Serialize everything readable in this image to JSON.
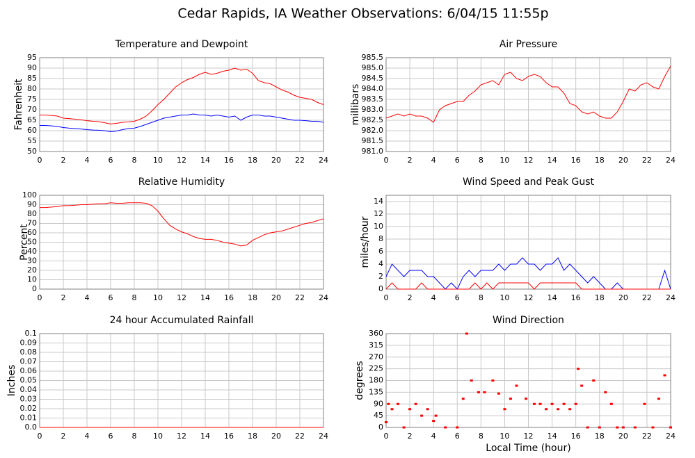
{
  "title": "Cedar Rapids, IA Weather Observations: 6/04/15 11:55p",
  "chart_data": [
    {
      "type": "line",
      "title": "Temperature and Dewpoint",
      "y_label": "Fahrenheit",
      "x": [
        0,
        0.5,
        1,
        1.5,
        2,
        2.5,
        3,
        3.5,
        4,
        4.5,
        5,
        5.5,
        6,
        6.5,
        7,
        7.5,
        8,
        8.5,
        9,
        9.5,
        10,
        10.5,
        11,
        11.5,
        12,
        12.5,
        13,
        13.5,
        14,
        14.5,
        15,
        15.5,
        16,
        16.5,
        17,
        17.5,
        18,
        18.5,
        19,
        19.5,
        20,
        20.5,
        21,
        21.5,
        22,
        22.5,
        23,
        23.5,
        24
      ],
      "series": [
        {
          "color": "#ff0000",
          "values": [
            67.5,
            67.5,
            67.3,
            67,
            66,
            65.8,
            65.5,
            65.2,
            64.8,
            64.5,
            64.3,
            63.8,
            63.2,
            63.5,
            64,
            64.2,
            64.5,
            65.5,
            67,
            69.5,
            72.5,
            75,
            78,
            81,
            83,
            84.5,
            85.5,
            87,
            88,
            87,
            87.5,
            88.5,
            89,
            90,
            89,
            89.5,
            87.5,
            84,
            83,
            82.5,
            81,
            79.5,
            78.5,
            77,
            76,
            75.5,
            75,
            73.5,
            72.5
          ]
        },
        {
          "color": "#0000ff",
          "values": [
            62.5,
            62.5,
            62.3,
            62,
            61.5,
            61.2,
            61,
            60.8,
            60.5,
            60.3,
            60.2,
            60,
            59.5,
            59.8,
            60.5,
            61,
            61.2,
            62,
            63,
            64,
            65,
            66,
            66.5,
            67,
            67.5,
            67.5,
            68,
            67.5,
            67.5,
            67,
            67.5,
            67,
            66.5,
            67,
            65,
            66.5,
            67.5,
            67.5,
            67,
            67,
            66.5,
            66,
            65.5,
            65,
            65,
            64.8,
            64.5,
            64.5,
            64
          ]
        }
      ],
      "xlim": [
        0,
        24
      ],
      "xticks": [
        0,
        2,
        4,
        6,
        8,
        10,
        12,
        14,
        16,
        18,
        20,
        22,
        24
      ],
      "ylim": [
        50,
        95
      ],
      "yticks": [
        50,
        55,
        60,
        65,
        70,
        75,
        80,
        85,
        90,
        95
      ],
      "grid": true
    },
    {
      "type": "line",
      "title": "Air Pressure",
      "y_label": "millibars",
      "x": [
        0,
        0.5,
        1,
        1.5,
        2,
        2.5,
        3,
        3.5,
        4,
        4.5,
        5,
        5.5,
        6,
        6.5,
        7,
        7.5,
        8,
        8.5,
        9,
        9.5,
        10,
        10.5,
        11,
        11.5,
        12,
        12.5,
        13,
        13.5,
        14,
        14.5,
        15,
        15.5,
        16,
        16.5,
        17,
        17.5,
        18,
        18.5,
        19,
        19.5,
        20,
        20.5,
        21,
        21.5,
        22,
        22.5,
        23,
        23.5,
        24
      ],
      "series": [
        {
          "color": "#ff0000",
          "values": [
            982.6,
            982.7,
            982.8,
            982.7,
            982.8,
            982.7,
            982.7,
            982.6,
            982.4,
            983.0,
            983.2,
            983.3,
            983.4,
            983.4,
            983.7,
            983.9,
            984.2,
            984.3,
            984.4,
            984.2,
            984.7,
            984.8,
            984.5,
            984.4,
            984.6,
            984.7,
            984.6,
            984.3,
            984.1,
            984.1,
            983.8,
            983.3,
            983.2,
            982.9,
            982.8,
            982.9,
            982.7,
            982.6,
            982.6,
            982.9,
            983.4,
            984.0,
            983.9,
            984.2,
            984.3,
            984.1,
            984.0,
            984.6,
            985.1
          ]
        }
      ],
      "xlim": [
        0,
        24
      ],
      "xticks": [
        0,
        2,
        4,
        6,
        8,
        10,
        12,
        14,
        16,
        18,
        20,
        22,
        24
      ],
      "ylim": [
        981,
        985.5
      ],
      "yticks": [
        {
          "value": 981,
          "label": "981.0"
        },
        981.5,
        {
          "value": 982,
          "label": "982.0"
        },
        982.5,
        {
          "value": 983,
          "label": "983.0"
        },
        983.5,
        {
          "value": 984,
          "label": "984.0"
        },
        984.5,
        {
          "value": 985,
          "label": "985.0"
        },
        985.5
      ],
      "grid": true
    },
    {
      "type": "line",
      "title": "Relative Humidity",
      "y_label": "Percent",
      "x": [
        0,
        0.5,
        1,
        1.5,
        2,
        2.5,
        3,
        3.5,
        4,
        4.5,
        5,
        5.5,
        6,
        6.5,
        7,
        7.5,
        8,
        8.5,
        9,
        9.5,
        10,
        10.5,
        11,
        11.5,
        12,
        12.5,
        13,
        13.5,
        14,
        14.5,
        15,
        15.5,
        16,
        16.5,
        17,
        17.5,
        18,
        18.5,
        19,
        19.5,
        20,
        20.5,
        21,
        21.5,
        22,
        22.5,
        23,
        23.5,
        24
      ],
      "series": [
        {
          "color": "#ff0000",
          "values": [
            87,
            87,
            87.5,
            88,
            89,
            89,
            89.5,
            90,
            90,
            90.5,
            91,
            91,
            92,
            91.5,
            91.5,
            92,
            92,
            92,
            91.5,
            89,
            83,
            75,
            68,
            64,
            61,
            59,
            56,
            54,
            53,
            53,
            52,
            50,
            49,
            48,
            46,
            47,
            52,
            55,
            58,
            60,
            61,
            62,
            64,
            66,
            68,
            70,
            71,
            73,
            75
          ]
        }
      ],
      "xlim": [
        0,
        24
      ],
      "xticks": [
        0,
        2,
        4,
        6,
        8,
        10,
        12,
        14,
        16,
        18,
        20,
        22,
        24
      ],
      "ylim": [
        0,
        100
      ],
      "yticks": [
        0,
        10,
        20,
        30,
        40,
        50,
        60,
        70,
        80,
        90,
        100
      ],
      "grid": true
    },
    {
      "type": "line",
      "title": "Wind Speed and Peak Gust",
      "y_label": "miles/hour",
      "x": [
        0,
        0.5,
        1,
        1.5,
        2,
        2.5,
        3,
        3.5,
        4,
        4.5,
        5,
        5.5,
        6,
        6.5,
        7,
        7.5,
        8,
        8.5,
        9,
        9.5,
        10,
        10.5,
        11,
        11.5,
        12,
        12.5,
        13,
        13.5,
        14,
        14.5,
        15,
        15.5,
        16,
        16.5,
        17,
        17.5,
        18,
        18.5,
        19,
        19.5,
        20,
        20.5,
        21,
        21.5,
        22,
        22.5,
        23,
        23.5,
        24
      ],
      "series": [
        {
          "color": "#0000ff",
          "values": [
            2,
            4,
            3,
            2,
            3,
            3,
            3,
            2,
            2,
            1,
            0,
            1,
            0,
            2,
            3,
            2,
            3,
            3,
            3,
            4,
            3,
            4,
            4,
            5,
            4,
            4,
            3,
            4,
            4,
            5,
            3,
            4,
            3,
            2,
            1,
            2,
            1,
            0,
            0,
            1,
            0,
            0,
            0,
            0,
            0,
            0,
            0,
            3,
            0
          ]
        },
        {
          "color": "#ff0000",
          "values": [
            0,
            1,
            0,
            0,
            0,
            0,
            1,
            0,
            0,
            0,
            0,
            0,
            0,
            0,
            0,
            1,
            0,
            1,
            0,
            1,
            1,
            1,
            1,
            1,
            1,
            0,
            1,
            1,
            1,
            1,
            1,
            1,
            1,
            0,
            0,
            0,
            0,
            0,
            0,
            0,
            0,
            0,
            0,
            0,
            0,
            0,
            0,
            0,
            0
          ]
        }
      ],
      "xlim": [
        0,
        24
      ],
      "xticks": [
        0,
        2,
        4,
        6,
        8,
        10,
        12,
        14,
        16,
        18,
        20,
        22,
        24
      ],
      "ylim": [
        0,
        15
      ],
      "yticks": [
        0,
        2,
        4,
        6,
        8,
        10,
        12,
        14
      ],
      "grid": true
    },
    {
      "type": "line",
      "title": "24 hour Accumulated Rainfall",
      "y_label": "Inches",
      "x": [
        0,
        24
      ],
      "series": [
        {
          "color": "#ff0000",
          "values": [
            0,
            0
          ]
        }
      ],
      "xlim": [
        0,
        24
      ],
      "xticks": [
        0,
        2,
        4,
        6,
        8,
        10,
        12,
        14,
        16,
        18,
        20,
        22,
        24
      ],
      "ylim": [
        0,
        0.1
      ],
      "yticks": [
        {
          "value": 0,
          "label": "0.0"
        },
        0.01,
        0.02,
        0.03,
        0.04,
        0.05,
        0.06,
        0.07,
        0.08,
        0.09,
        0.1
      ],
      "grid": true
    },
    {
      "type": "scatter",
      "title": "Wind Direction",
      "y_label": "degrees",
      "x_label": "Local Time (hour)",
      "x": [
        0,
        0.2,
        0.5,
        1,
        1.5,
        2,
        2.5,
        3,
        3.5,
        4,
        4.2,
        5,
        6,
        6.5,
        6.8,
        7.2,
        7.8,
        8.3,
        9,
        9.5,
        10,
        10.5,
        11,
        11.8,
        12.5,
        13,
        13.5,
        14,
        14.5,
        15,
        15.5,
        16,
        16.2,
        16.5,
        17,
        17.5,
        18,
        18.5,
        19,
        19.5,
        20,
        21,
        21.8,
        22.5,
        23,
        23.5,
        24
      ],
      "series": [
        {
          "color": "#ff0000",
          "values": [
            20,
            90,
            70,
            90,
            0,
            70,
            90,
            45,
            70,
            25,
            45,
            0,
            0,
            110,
            360,
            180,
            135,
            135,
            180,
            130,
            70,
            110,
            160,
            110,
            90,
            90,
            70,
            90,
            70,
            90,
            70,
            90,
            225,
            160,
            0,
            180,
            0,
            135,
            90,
            0,
            0,
            0,
            90,
            0,
            110,
            200,
            0
          ]
        }
      ],
      "xlim": [
        0,
        24
      ],
      "xticks": [
        0,
        2,
        4,
        6,
        8,
        10,
        12,
        14,
        16,
        18,
        20,
        22,
        24
      ],
      "ylim": [
        0,
        360
      ],
      "yticks": [
        0,
        45,
        90,
        135,
        180,
        225,
        270,
        315,
        360
      ],
      "grid": true
    }
  ]
}
